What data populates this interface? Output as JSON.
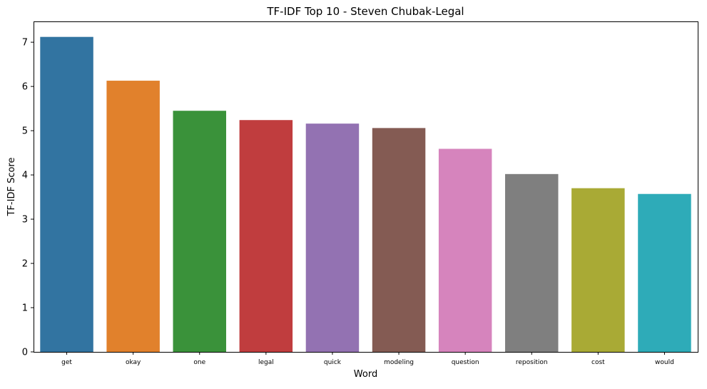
{
  "chart_data": {
    "type": "bar",
    "title": "TF-IDF Top 10 - Steven Chubak-Legal",
    "xlabel": "Word",
    "ylabel": "TF-IDF Score",
    "categories": [
      "get",
      "okay",
      "one",
      "legal",
      "quick",
      "modeling",
      "question",
      "reposition",
      "cost",
      "would"
    ],
    "values": [
      7.12,
      6.13,
      5.45,
      5.24,
      5.16,
      5.06,
      4.59,
      4.02,
      3.7,
      3.57
    ],
    "colors": [
      "#3274a1",
      "#e1812c",
      "#3a923a",
      "#c03d3e",
      "#9372b2",
      "#845b53",
      "#d684bd",
      "#7f7f7f",
      "#a9aa35",
      "#2eabb8"
    ],
    "ylim": [
      0,
      7.47
    ],
    "yticks": [
      0,
      1,
      2,
      3,
      4,
      5,
      6,
      7
    ],
    "grid": false,
    "legend": "none"
  }
}
